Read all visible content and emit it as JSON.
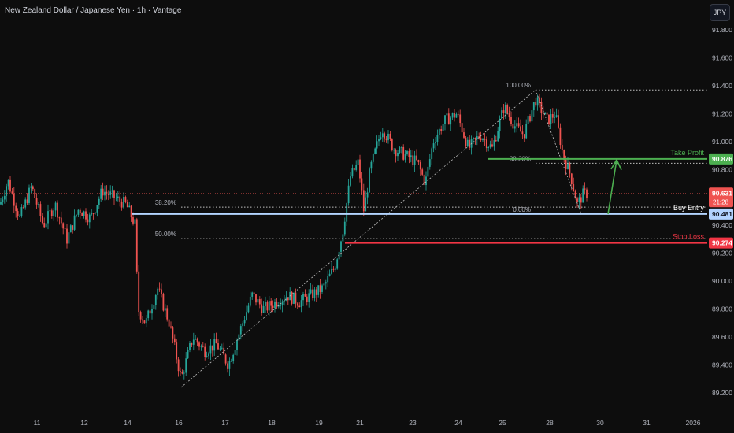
{
  "header": {
    "title": "New Zealand Dollar / Japanese Yen · 1h · Vantage",
    "currency_button": "JPY"
  },
  "colors": {
    "background": "#0d0d0d",
    "up_candle": "#26a69a",
    "down_candle": "#ef5350",
    "take_profit": "#4caf50",
    "buy_entry": "#b3d4ff",
    "stop_loss": "#f23645",
    "fib": "#c0c0c0"
  },
  "chart_data": {
    "type": "candlestick",
    "title": "New Zealand Dollar / Japanese Yen · 1h · Vantage",
    "ylim": [
      89.1,
      91.95
    ],
    "y_ticks": [
      91.8,
      91.6,
      91.4,
      91.2,
      91.0,
      90.8,
      90.6,
      90.4,
      90.2,
      90.0,
      89.8,
      89.6,
      89.4,
      89.2
    ],
    "y_tick_labels": [
      "91.800",
      "91.600",
      "91.400",
      "91.200",
      "91.000",
      "90.800",
      "90.600",
      "90.400",
      "90.200",
      "90.000",
      "89.800",
      "89.600",
      "89.400",
      "89.200"
    ],
    "x_tick_labels": [
      "11",
      "12",
      "14",
      "16",
      "17",
      "18",
      "19",
      "21",
      "23",
      "24",
      "25",
      "28",
      "30",
      "31",
      "2026"
    ],
    "price_path": [
      [
        0,
        90.55
      ],
      [
        10,
        90.72
      ],
      [
        25,
        90.45
      ],
      [
        40,
        90.68
      ],
      [
        55,
        90.4
      ],
      [
        70,
        90.55
      ],
      [
        85,
        90.3
      ],
      [
        100,
        90.52
      ],
      [
        115,
        90.45
      ],
      [
        130,
        90.65
      ],
      [
        145,
        90.6
      ],
      [
        160,
        90.55
      ],
      [
        172,
        90.4
      ],
      [
        175,
        89.8
      ],
      [
        185,
        89.7
      ],
      [
        200,
        89.95
      ],
      [
        215,
        89.7
      ],
      [
        230,
        89.3
      ],
      [
        245,
        89.6
      ],
      [
        260,
        89.5
      ],
      [
        275,
        89.55
      ],
      [
        290,
        89.4
      ],
      [
        305,
        89.65
      ],
      [
        320,
        89.9
      ],
      [
        335,
        89.8
      ],
      [
        350,
        89.85
      ],
      [
        365,
        89.9
      ],
      [
        380,
        89.85
      ],
      [
        395,
        89.9
      ],
      [
        410,
        89.95
      ],
      [
        425,
        90.1
      ],
      [
        435,
        90.35
      ],
      [
        445,
        90.75
      ],
      [
        455,
        90.85
      ],
      [
        462,
        90.5
      ],
      [
        470,
        90.8
      ],
      [
        485,
        91.1
      ],
      [
        500,
        90.95
      ],
      [
        515,
        90.9
      ],
      [
        530,
        90.85
      ],
      [
        540,
        90.7
      ],
      [
        550,
        91.0
      ],
      [
        565,
        91.15
      ],
      [
        580,
        91.2
      ],
      [
        595,
        90.95
      ],
      [
        610,
        91.05
      ],
      [
        625,
        90.95
      ],
      [
        640,
        91.25
      ],
      [
        655,
        91.1
      ],
      [
        665,
        91.05
      ],
      [
        680,
        91.3
      ],
      [
        695,
        91.15
      ],
      [
        705,
        91.2
      ],
      [
        715,
        90.9
      ],
      [
        725,
        90.75
      ],
      [
        733,
        90.55
      ],
      [
        740,
        90.62
      ],
      [
        745,
        90.63
      ]
    ],
    "current_price": {
      "value": 90.631,
      "label": "90.631",
      "countdown": "21:28"
    },
    "fibonacci": {
      "swing_low_x": 230,
      "swing_low_price": 89.24,
      "swing_high_x": 680,
      "swing_high_price": 91.37,
      "levels": [
        {
          "label": "38.20%",
          "price": 90.53,
          "x_start": 230
        },
        {
          "label": "50.00%",
          "price": 90.305,
          "x_start": 230
        },
        {
          "label": "100.00%",
          "price": 91.37,
          "x_start": 680
        },
        {
          "label": "38.20%",
          "price": 90.845,
          "x_start": 680
        },
        {
          "label": "0.00%",
          "price": 90.48,
          "x_start": 680
        }
      ]
    },
    "horizontal_levels": [
      {
        "name": "Take Profit",
        "price": 90.876,
        "label": "90.876",
        "x_start": 620
      },
      {
        "name": "Buy Entry",
        "price": 90.481,
        "label": "90.481",
        "x_start": 168
      },
      {
        "name": "Stop Loss",
        "price": 90.274,
        "label": "90.274",
        "x_start": 438
      }
    ],
    "projection_arrow": {
      "from": [
        772,
        90.48
      ],
      "to": [
        783,
        90.87
      ]
    }
  }
}
